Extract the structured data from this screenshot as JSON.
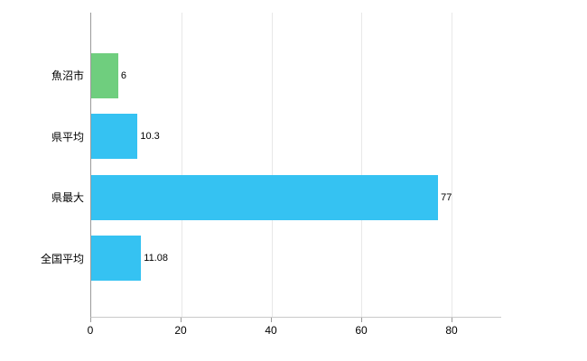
{
  "chart_data": {
    "type": "bar",
    "orientation": "horizontal",
    "categories": [
      "魚沼市",
      "県平均",
      "県最大",
      "全国平均"
    ],
    "values": [
      6,
      10.3,
      77,
      11.08
    ],
    "value_labels": [
      "6",
      "10.3",
      "77",
      "11.08"
    ],
    "bar_colors": [
      "#6fce7e",
      "#35c2f2",
      "#35c2f2",
      "#35c2f2"
    ],
    "xlim": [
      0,
      91
    ],
    "ticks": [
      0,
      20,
      40,
      60,
      80
    ],
    "grid": true,
    "title": "",
    "xlabel": "",
    "ylabel": "",
    "background_color": "#ffffff",
    "axis_color": "#9a9a9a",
    "gridline_color": "#e8e8e8"
  }
}
